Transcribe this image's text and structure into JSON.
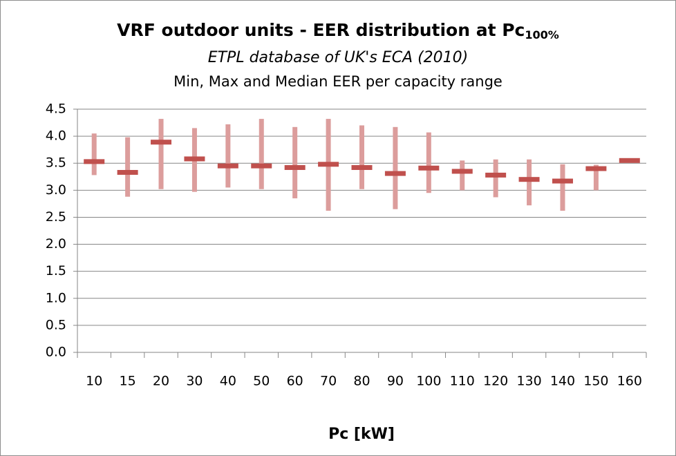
{
  "chart_data": {
    "type": "range",
    "title": "VRF outdoor units - EER distribution at Pc",
    "title_subscript": "100%",
    "subtitle": "ETPL database of UK's ECA (2010)",
    "subtitle2": "Min, Max and Median EER per capacity range",
    "x_label": "Pc [kW]",
    "categories": [
      "10",
      "15",
      "20",
      "30",
      "40",
      "50",
      "60",
      "70",
      "80",
      "90",
      "100",
      "110",
      "120",
      "130",
      "140",
      "150",
      "160"
    ],
    "max": [
      4.05,
      3.98,
      4.32,
      4.15,
      4.22,
      4.32,
      4.17,
      4.32,
      4.2,
      4.17,
      4.07,
      3.55,
      3.57,
      3.57,
      3.48,
      3.47,
      3.57
    ],
    "min": [
      3.28,
      2.88,
      3.02,
      2.97,
      3.05,
      3.02,
      2.85,
      2.62,
      3.02,
      2.65,
      2.95,
      3.0,
      2.87,
      2.72,
      2.62,
      3.0,
      3.53
    ],
    "median": [
      3.53,
      3.33,
      3.89,
      3.58,
      3.45,
      3.45,
      3.42,
      3.48,
      3.42,
      3.31,
      3.41,
      3.35,
      3.28,
      3.2,
      3.17,
      3.4,
      3.55
    ],
    "range_color": "#dc9d9c",
    "median_color": "#c0504d",
    "ylim": [
      0,
      4.5
    ],
    "yticks": [
      {
        "value": 0,
        "label": "0.0"
      },
      {
        "value": 0.5,
        "label": "0.5"
      },
      {
        "value": 1,
        "label": "1.0"
      },
      {
        "value": 1.5,
        "label": "1.5"
      },
      {
        "value": 2,
        "label": "2.0"
      },
      {
        "value": 2.5,
        "label": "2.5"
      },
      {
        "value": 3,
        "label": "3.0"
      },
      {
        "value": 3.5,
        "label": "3.5"
      },
      {
        "value": 4,
        "label": "4.0"
      },
      {
        "value": 4.5,
        "label": "4.5"
      }
    ],
    "grid": true
  }
}
